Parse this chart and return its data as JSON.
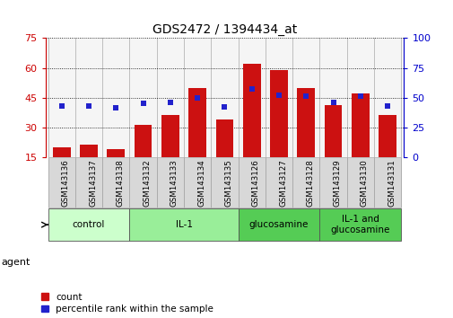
{
  "title": "GDS2472 / 1394434_at",
  "samples": [
    "GSM143136",
    "GSM143137",
    "GSM143138",
    "GSM143132",
    "GSM143133",
    "GSM143134",
    "GSM143135",
    "GSM143126",
    "GSM143127",
    "GSM143128",
    "GSM143129",
    "GSM143130",
    "GSM143131"
  ],
  "counts": [
    20,
    21,
    19,
    31,
    36,
    50,
    34,
    62,
    59,
    50,
    41,
    47,
    36
  ],
  "percentiles": [
    43,
    43,
    41,
    45,
    46,
    50,
    42,
    57,
    52,
    51,
    46,
    51,
    43
  ],
  "groups_def": [
    {
      "label": "control",
      "cols": [
        0,
        1,
        2
      ],
      "color": "#ccffcc"
    },
    {
      "label": "IL-1",
      "cols": [
        3,
        4,
        5,
        6
      ],
      "color": "#99ee99"
    },
    {
      "label": "glucosamine",
      "cols": [
        7,
        8,
        9
      ],
      "color": "#55cc55"
    },
    {
      "label": "IL-1 and\nglucosamine",
      "cols": [
        10,
        11,
        12
      ],
      "color": "#55cc55"
    }
  ],
  "ylim_left": [
    15,
    75
  ],
  "ylim_right": [
    0,
    100
  ],
  "yticks_left": [
    15,
    30,
    45,
    60,
    75
  ],
  "yticks_right": [
    0,
    25,
    50,
    75,
    100
  ],
  "bar_color": "#cc1111",
  "dot_color": "#2222cc",
  "bg_color": "#ffffff",
  "grid_color": "#000000",
  "tick_label_color_left": "#cc0000",
  "tick_label_color_right": "#0000cc"
}
